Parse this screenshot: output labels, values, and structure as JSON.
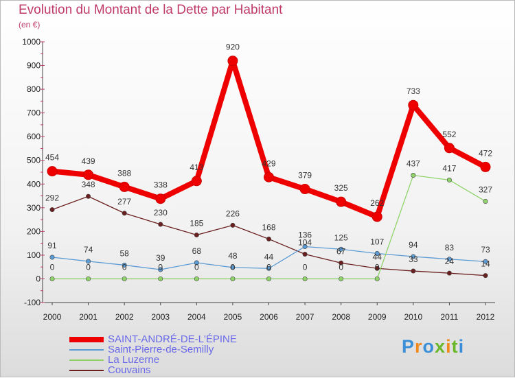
{
  "title": "Evolution du Montant de la Dette par Habitant",
  "subtitle": "(en €)",
  "logo": {
    "text": "Proxiti",
    "colors": [
      "#3a8fd8",
      "#f08a1c",
      "#3a8fd8",
      "#6ab82a",
      "#f08a1c",
      "#6ab82a",
      "#3a8fd8"
    ]
  },
  "chart_data": {
    "type": "line",
    "title": "Evolution du Montant de la Dette par Habitant",
    "ylabel": "(en €)",
    "xlabel": "",
    "x": [
      "2000",
      "2001",
      "2002",
      "2003",
      "2004",
      "2005",
      "2006",
      "2007",
      "2008",
      "2009",
      "2010",
      "2011",
      "2012"
    ],
    "ylim": [
      -100,
      1000
    ],
    "yticks": [
      -100,
      0,
      100,
      200,
      300,
      400,
      500,
      600,
      700,
      800,
      900,
      1000
    ],
    "grid": false,
    "legend": "bottom-left",
    "series": [
      {
        "name": "SAINT-ANDRÉ-DE-L'ÉPINE",
        "color": "#ee0000",
        "values": [
          454,
          439,
          388,
          338,
          413,
          920,
          429,
          379,
          325,
          262,
          733,
          552,
          472
        ]
      },
      {
        "name": "Saint-Pierre-de-Semilly",
        "color": "#5b9bd5",
        "values": [
          91,
          74,
          58,
          39,
          68,
          48,
          44,
          136,
          125,
          107,
          94,
          83,
          73
        ]
      },
      {
        "name": "La Luzerne",
        "color": "#8fd36a",
        "values": [
          0,
          0,
          0,
          0,
          0,
          0,
          0,
          0,
          0,
          0,
          437,
          417,
          327
        ]
      },
      {
        "name": "Couvains",
        "color": "#6b1f1f",
        "values": [
          292,
          348,
          277,
          230,
          185,
          226,
          168,
          104,
          67,
          44,
          33,
          24,
          14
        ]
      }
    ]
  }
}
